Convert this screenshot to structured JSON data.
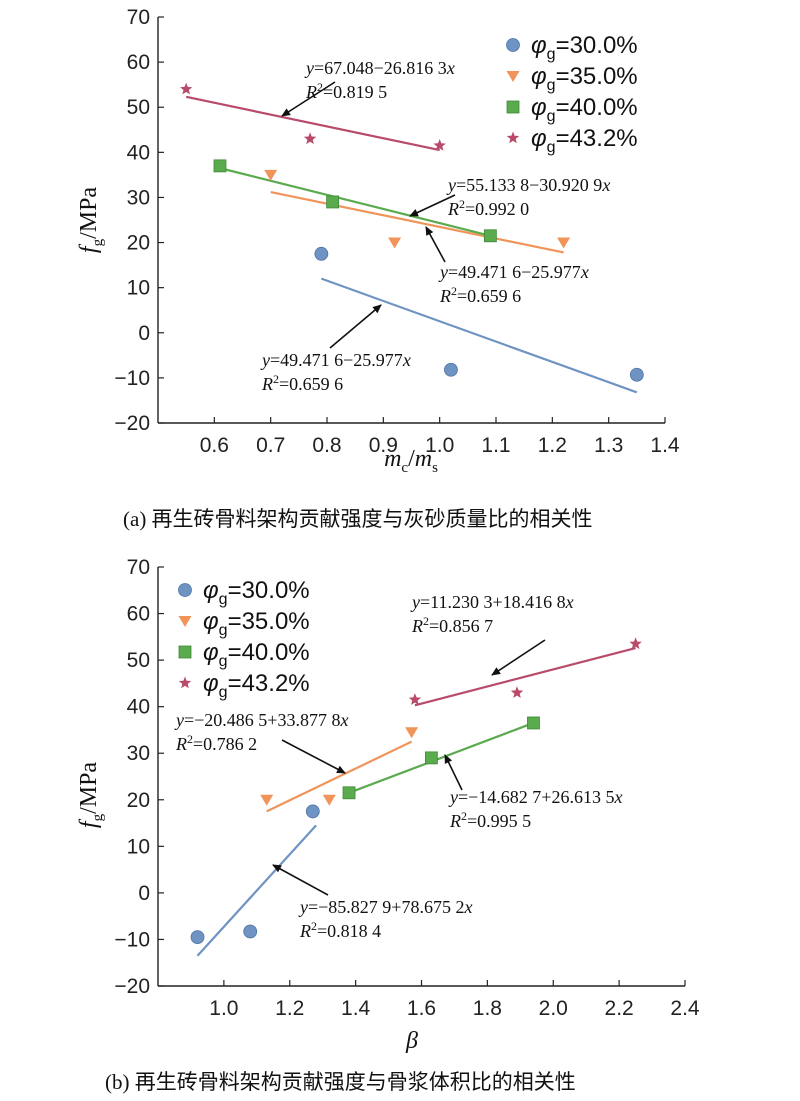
{
  "chart_data": [
    {
      "type": "scatter",
      "caption": "(a) 再生砖骨料架构贡献强度与灰砂质量比的相关性",
      "xlabel": "mc/ms",
      "ylabel": "fg/MPa",
      "xlim": [
        0.5,
        1.4
      ],
      "ylim": [
        -20,
        70
      ],
      "xticks": [
        "0.6",
        "0.7",
        "0.8",
        "0.9",
        "1.0",
        "1.1",
        "1.2",
        "1.3",
        "1.4"
      ],
      "yticks": [
        "−20",
        "−10",
        "0",
        "10",
        "20",
        "30",
        "40",
        "50",
        "60",
        "70"
      ],
      "legend_position": "top-right",
      "series": [
        {
          "name": "φg=30.0%",
          "color": "#6f93c2",
          "marker": "circle",
          "x": [
            0.79,
            1.02,
            1.35
          ],
          "y": [
            17.5,
            -8.2,
            -9.3
          ],
          "fit": [
            [
              0.79,
              12.0
            ],
            [
              1.35,
              -13.2
            ]
          ]
        },
        {
          "name": "φg=35.0%",
          "color": "#f0945a",
          "marker": "triangle",
          "x": [
            0.7,
            0.92,
            1.22
          ],
          "y": [
            35.0,
            20.0,
            20.0
          ],
          "fit": [
            [
              0.7,
              31.2
            ],
            [
              1.22,
              17.8
            ]
          ]
        },
        {
          "name": "φg=40.0%",
          "color": "#5aaa4e",
          "marker": "square",
          "x": [
            0.61,
            0.81,
            1.09
          ],
          "y": [
            37.0,
            29.0,
            21.5
          ],
          "fit": [
            [
              0.61,
              36.5
            ],
            [
              1.09,
              21.5
            ]
          ]
        },
        {
          "name": "φg=43.2%",
          "color": "#b84a6a",
          "marker": "star",
          "x": [
            0.55,
            0.77,
            1.0
          ],
          "y": [
            54.0,
            43.0,
            41.5
          ],
          "fit": [
            [
              0.55,
              52.3
            ],
            [
              1.0,
              40.5
            ]
          ]
        }
      ],
      "annotations": [
        {
          "eq": "y=67.048−26.816 3x",
          "r2": "R²=0.819 5"
        },
        {
          "eq": "y=55.133 8−30.920 9x",
          "r2": "R²=0.992 0"
        },
        {
          "eq": "y=49.471 6−25.977x",
          "r2": "R²=0.659 6"
        },
        {
          "eq": "y=49.471 6−25.977x",
          "r2": "R²=0.659 6"
        }
      ]
    },
    {
      "type": "scatter",
      "caption": "(b) 再生砖骨料架构贡献强度与骨浆体积比的相关性",
      "xlabel": "β",
      "ylabel": "fg/MPa",
      "xlim": [
        0.8,
        2.4
      ],
      "ylim": [
        -20,
        70
      ],
      "xticks": [
        "1.0",
        "1.2",
        "1.4",
        "1.6",
        "1.8",
        "2.0",
        "2.2",
        "2.4"
      ],
      "yticks": [
        "−20",
        "−10",
        "0",
        "10",
        "20",
        "30",
        "40",
        "50",
        "60",
        "70"
      ],
      "legend_position": "top-left",
      "series": [
        {
          "name": "φg=30.0%",
          "color": "#6f93c2",
          "marker": "circle",
          "x": [
            0.92,
            1.08,
            1.27
          ],
          "y": [
            -9.5,
            -8.3,
            17.5
          ],
          "fit": [
            [
              0.92,
              -13.5
            ],
            [
              1.28,
              14.5
            ]
          ]
        },
        {
          "name": "φg=35.0%",
          "color": "#f0945a",
          "marker": "triangle",
          "x": [
            1.13,
            1.32,
            1.57
          ],
          "y": [
            20.0,
            20.0,
            34.5
          ],
          "fit": [
            [
              1.13,
              17.5
            ],
            [
              1.57,
              32.5
            ]
          ]
        },
        {
          "name": "φg=40.0%",
          "color": "#5aaa4e",
          "marker": "square",
          "x": [
            1.38,
            1.63,
            1.94
          ],
          "y": [
            21.5,
            29.0,
            36.5
          ],
          "fit": [
            [
              1.38,
              21.5
            ],
            [
              1.94,
              36.5
            ]
          ]
        },
        {
          "name": "φg=43.2%",
          "color": "#b84a6a",
          "marker": "star",
          "x": [
            1.58,
            1.89,
            2.25
          ],
          "y": [
            41.5,
            43.0,
            53.5
          ],
          "fit": [
            [
              1.58,
              40.3
            ],
            [
              2.25,
              52.6
            ]
          ]
        }
      ],
      "annotations": [
        {
          "eq": "y=11.230 3+18.416 8x",
          "r2": "R²=0.856 7"
        },
        {
          "eq": "y=−20.486 5+33.877 8x",
          "r2": "R²=0.786 2"
        },
        {
          "eq": "y=−14.682 7+26.613 5x",
          "r2": "R²=0.995 5"
        },
        {
          "eq": "y=−85.827 9+78.675 2x",
          "r2": "R²=0.818 4"
        }
      ]
    }
  ]
}
